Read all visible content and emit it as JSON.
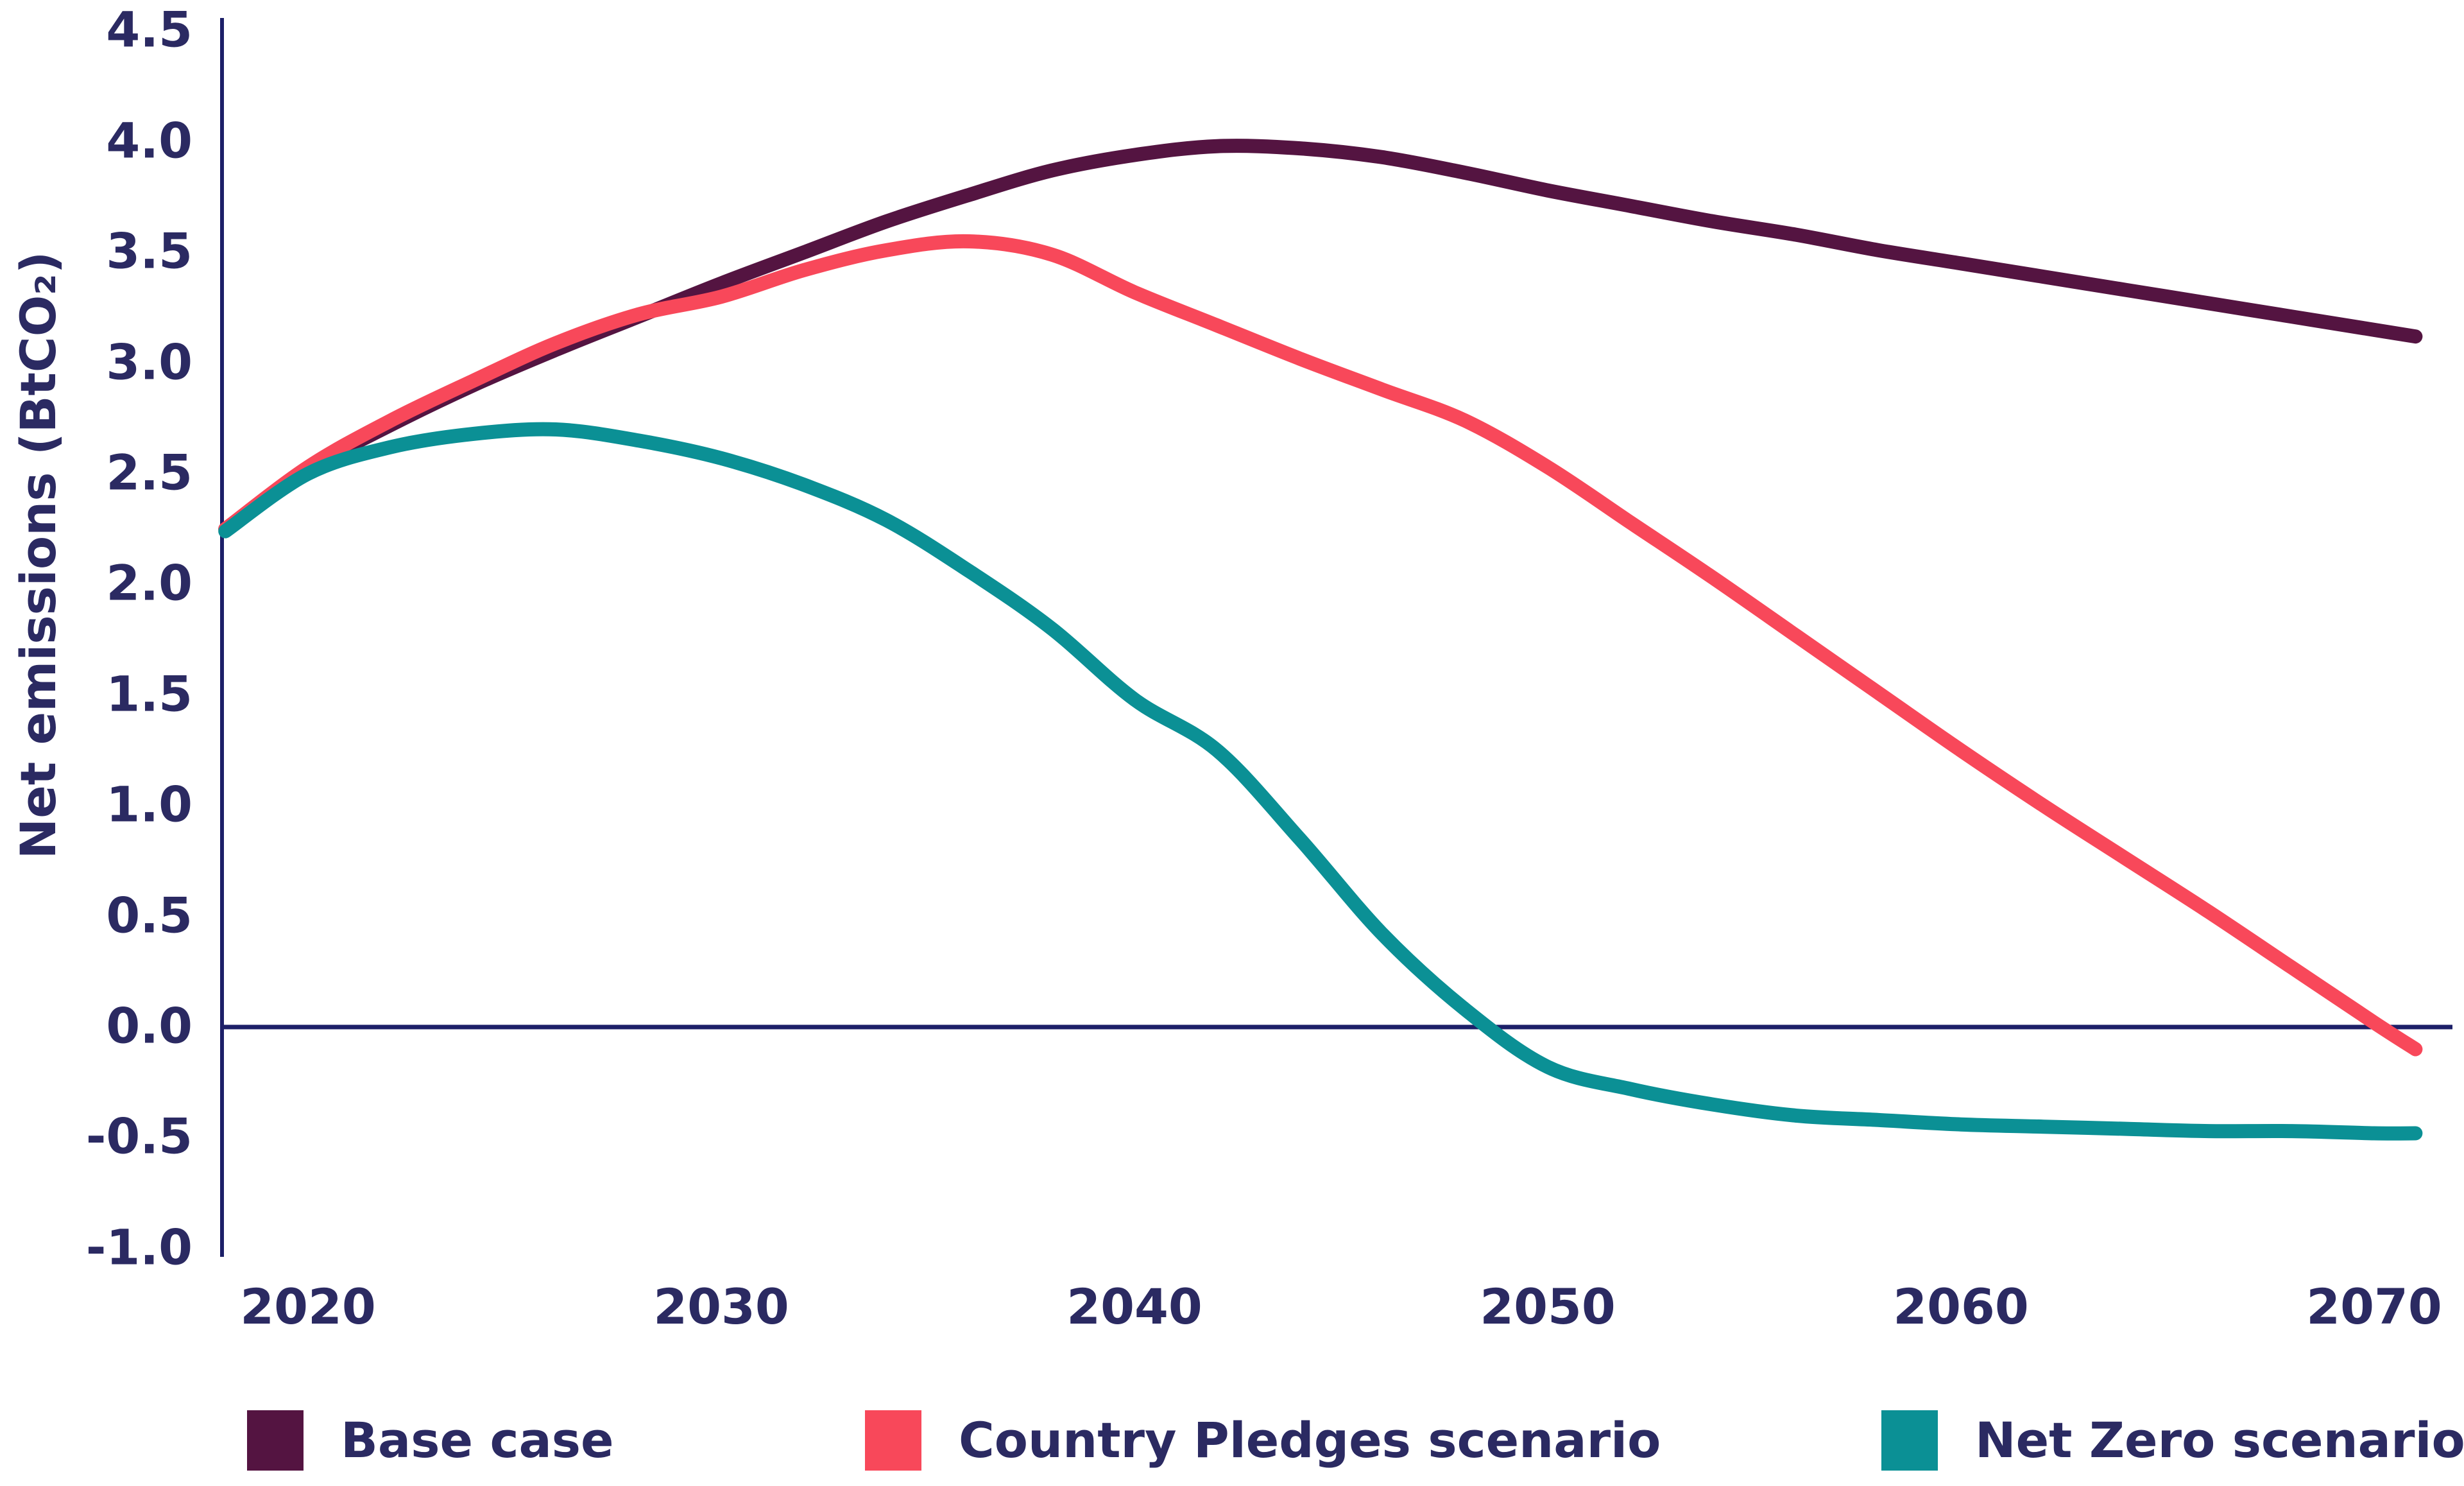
{
  "axes": {
    "y_label": "Net emissions (BtCO₂)",
    "y_ticks": [
      "4.5",
      "4.0",
      "3.5",
      "3.0",
      "2.5",
      "2.0",
      "1.5",
      "1.0",
      "0.5",
      "0.0",
      "-0.5",
      "-1.0"
    ],
    "x_ticks": [
      "2020",
      "2030",
      "2040",
      "2050",
      "2060",
      "2070"
    ]
  },
  "colors": {
    "axis_line": "#1c1f68",
    "zero_line": "#1c1f68",
    "text": "#2b2a62",
    "base_case": "#541441",
    "country_pledges": "#f8485a",
    "net_zero": "#0b9095"
  },
  "legend": {
    "items": [
      {
        "label": "Base case",
        "color": "#541441"
      },
      {
        "label": "Country Pledges scenario",
        "color": "#f8485a"
      },
      {
        "label": "Net Zero scenario",
        "color": "#0b9095"
      }
    ]
  },
  "chart_data": {
    "type": "line",
    "title": "",
    "xlabel": "",
    "ylabel": "Net emissions (BtCO₂)",
    "ylim": [
      -1.0,
      4.5
    ],
    "xlim": [
      2018,
      2071.5
    ],
    "grid": false,
    "legend_position": "bottom",
    "zero_line": true,
    "years": [
      2018,
      2020,
      2022,
      2024,
      2026,
      2028,
      2030,
      2032,
      2034,
      2036,
      2038,
      2040,
      2042,
      2044,
      2046,
      2048,
      2050,
      2052,
      2054,
      2056,
      2058,
      2060,
      2062,
      2064,
      2066,
      2068,
      2070,
      2071
    ],
    "series": [
      {
        "name": "Base case",
        "color": "#541441",
        "values": [
          2.25,
          2.52,
          2.72,
          2.9,
          3.06,
          3.21,
          3.36,
          3.5,
          3.64,
          3.76,
          3.87,
          3.94,
          3.98,
          3.97,
          3.93,
          3.86,
          3.78,
          3.71,
          3.64,
          3.58,
          3.51,
          3.45,
          3.39,
          3.33,
          3.27,
          3.21,
          3.15,
          3.12
        ]
      },
      {
        "name": "Country Pledges scenario",
        "color": "#f8485a",
        "values": [
          2.25,
          2.53,
          2.74,
          2.92,
          3.09,
          3.22,
          3.3,
          3.42,
          3.51,
          3.55,
          3.49,
          3.32,
          3.17,
          3.02,
          2.88,
          2.74,
          2.53,
          2.28,
          2.03,
          1.77,
          1.51,
          1.25,
          1.0,
          0.76,
          0.52,
          0.27,
          0.02,
          -0.1
        ]
      },
      {
        "name": "Net Zero scenario",
        "color": "#0b9095",
        "values": [
          2.24,
          2.5,
          2.62,
          2.68,
          2.7,
          2.65,
          2.57,
          2.45,
          2.29,
          2.06,
          1.8,
          1.48,
          1.25,
          0.85,
          0.42,
          0.08,
          -0.18,
          -0.28,
          -0.35,
          -0.4,
          -0.42,
          -0.44,
          -0.45,
          -0.46,
          -0.47,
          -0.47,
          -0.48,
          -0.48
        ]
      }
    ]
  }
}
